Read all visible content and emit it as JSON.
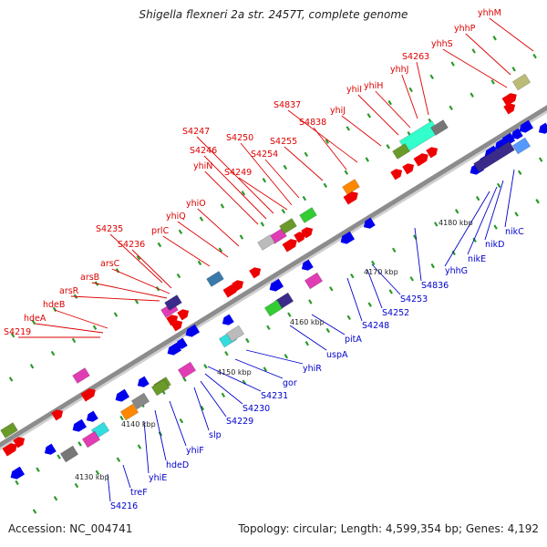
{
  "title": "Shigella flexneri 2a str. 2457T, complete genome",
  "footer": {
    "accession": "Accession: NC_004741",
    "summary": "Topology: circular; Length: 4,599,354 bp; Genes: 4,192"
  },
  "colors": {
    "forward_label": "#dd0000",
    "reverse_label": "#0000cc",
    "forward_feature": "#ee0000",
    "reverse_feature": "#0000ee",
    "backbone": "#8c8c8c",
    "tick": "#2a9a2a"
  },
  "scale_labels": [
    "4130 kbp",
    "4140 kbp",
    "4150 kbp",
    "4160 kbp",
    "4170 kbp",
    "4180 kbp"
  ],
  "forward_genes": [
    "S4219",
    "hdeA",
    "hdeB",
    "arsR",
    "arsB",
    "arsC",
    "S4236",
    "S4235",
    "prlC",
    "yhiQ",
    "yhiO",
    "yhiN",
    "S4246",
    "S4247",
    "S4249",
    "S4250",
    "S4254",
    "S4255",
    "S4838",
    "S4837",
    "yhiJ",
    "yhiI",
    "yhiH",
    "yhhJ",
    "S4263",
    "yhhS",
    "yhhP",
    "yhhM"
  ],
  "reverse_genes": [
    "S4216",
    "treF",
    "yhiE",
    "hdeD",
    "yhiF",
    "slp",
    "S4229",
    "S4230",
    "S4231",
    "gor",
    "yhiR",
    "uspA",
    "pitA",
    "S4248",
    "S4252",
    "S4253",
    "S4836",
    "yhhG",
    "nikE",
    "nikD",
    "nikC"
  ]
}
